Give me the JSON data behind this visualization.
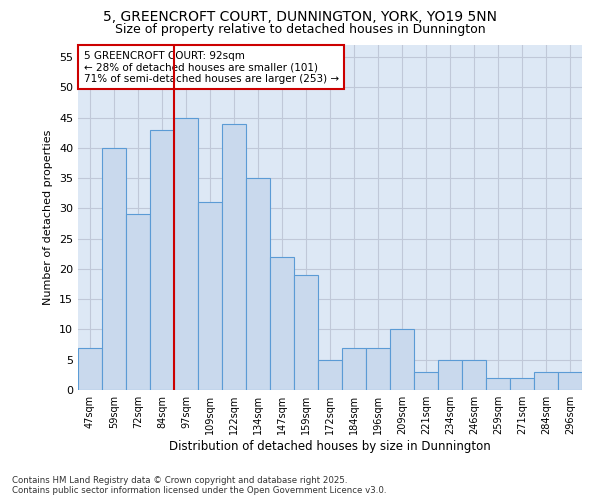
{
  "title": "5, GREENCROFT COURT, DUNNINGTON, YORK, YO19 5NN",
  "subtitle": "Size of property relative to detached houses in Dunnington",
  "xlabel": "Distribution of detached houses by size in Dunnington",
  "ylabel": "Number of detached properties",
  "categories": [
    "47sqm",
    "59sqm",
    "72sqm",
    "84sqm",
    "97sqm",
    "109sqm",
    "122sqm",
    "134sqm",
    "147sqm",
    "159sqm",
    "172sqm",
    "184sqm",
    "196sqm",
    "209sqm",
    "221sqm",
    "234sqm",
    "246sqm",
    "259sqm",
    "271sqm",
    "284sqm",
    "296sqm"
  ],
  "values": [
    7,
    40,
    29,
    43,
    45,
    31,
    44,
    35,
    22,
    19,
    5,
    7,
    7,
    10,
    3,
    5,
    5,
    2,
    2,
    3,
    3
  ],
  "bar_color": "#c9d9ed",
  "bar_edge_color": "#5b9bd5",
  "vline_x": 3.5,
  "vline_color": "#cc0000",
  "annotation_text": "5 GREENCROFT COURT: 92sqm\n← 28% of detached houses are smaller (101)\n71% of semi-detached houses are larger (253) →",
  "annotation_box_color": "#ffffff",
  "annotation_box_edge": "#cc0000",
  "ylim": [
    0,
    57
  ],
  "yticks": [
    0,
    5,
    10,
    15,
    20,
    25,
    30,
    35,
    40,
    45,
    50,
    55
  ],
  "grid_color": "#c0c8d8",
  "bg_color": "#dde8f5",
  "title_fontsize": 10,
  "subtitle_fontsize": 9,
  "footer": "Contains HM Land Registry data © Crown copyright and database right 2025.\nContains public sector information licensed under the Open Government Licence v3.0."
}
